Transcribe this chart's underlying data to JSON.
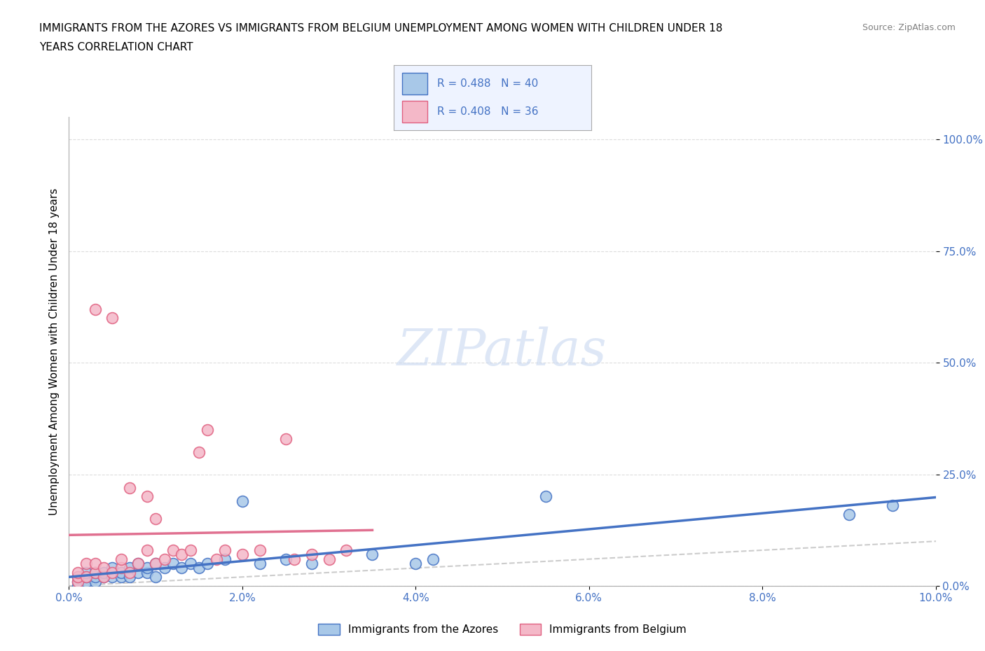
{
  "title_line1": "IMMIGRANTS FROM THE AZORES VS IMMIGRANTS FROM BELGIUM UNEMPLOYMENT AMONG WOMEN WITH CHILDREN UNDER 18",
  "title_line2": "YEARS CORRELATION CHART",
  "source": "Source: ZipAtlas.com",
  "ylabel": "Unemployment Among Women with Children Under 18 years",
  "xlim": [
    0.0,
    0.1
  ],
  "ylim": [
    0.0,
    1.05
  ],
  "x_ticks": [
    0.0,
    0.02,
    0.04,
    0.06,
    0.08,
    0.1
  ],
  "x_tick_labels": [
    "0.0%",
    "2.0%",
    "4.0%",
    "6.0%",
    "8.0%",
    "10.0%"
  ],
  "y_ticks": [
    0.0,
    0.25,
    0.5,
    0.75,
    1.0
  ],
  "y_tick_labels": [
    "0.0%",
    "25.0%",
    "50.0%",
    "75.0%",
    "100.0%"
  ],
  "azores_color": "#a8c8e8",
  "azores_edge_color": "#4472c4",
  "belgium_color": "#f4b8c8",
  "belgium_edge_color": "#e06080",
  "trend_line_color_azores": "#4472c4",
  "trend_line_color_belgium": "#e07090",
  "diagonal_color": "#cccccc",
  "legend_box_color": "#eef3ff",
  "watermark_color": "#c8d8f0",
  "azores_x": [
    0.001,
    0.001,
    0.001,
    0.002,
    0.002,
    0.002,
    0.003,
    0.003,
    0.003,
    0.004,
    0.004,
    0.005,
    0.005,
    0.006,
    0.006,
    0.007,
    0.007,
    0.008,
    0.008,
    0.009,
    0.009,
    0.01,
    0.01,
    0.011,
    0.012,
    0.013,
    0.014,
    0.015,
    0.016,
    0.018,
    0.02,
    0.022,
    0.025,
    0.028,
    0.035,
    0.04,
    0.042,
    0.055,
    0.09,
    0.095
  ],
  "azores_y": [
    0.0,
    0.01,
    0.02,
    0.01,
    0.02,
    0.03,
    0.01,
    0.02,
    0.03,
    0.02,
    0.03,
    0.02,
    0.04,
    0.02,
    0.03,
    0.02,
    0.04,
    0.03,
    0.05,
    0.03,
    0.04,
    0.02,
    0.05,
    0.04,
    0.05,
    0.04,
    0.05,
    0.04,
    0.05,
    0.06,
    0.19,
    0.05,
    0.06,
    0.05,
    0.07,
    0.05,
    0.06,
    0.2,
    0.16,
    0.18
  ],
  "belgium_x": [
    0.001,
    0.001,
    0.001,
    0.002,
    0.002,
    0.003,
    0.003,
    0.003,
    0.004,
    0.004,
    0.005,
    0.005,
    0.006,
    0.006,
    0.007,
    0.007,
    0.008,
    0.009,
    0.009,
    0.01,
    0.01,
    0.011,
    0.012,
    0.013,
    0.014,
    0.015,
    0.016,
    0.017,
    0.018,
    0.02,
    0.022,
    0.025,
    0.026,
    0.028,
    0.03,
    0.032
  ],
  "belgium_y": [
    0.01,
    0.02,
    0.03,
    0.02,
    0.05,
    0.03,
    0.05,
    0.62,
    0.02,
    0.04,
    0.03,
    0.6,
    0.04,
    0.06,
    0.03,
    0.22,
    0.05,
    0.08,
    0.2,
    0.05,
    0.15,
    0.06,
    0.08,
    0.07,
    0.08,
    0.3,
    0.35,
    0.06,
    0.08,
    0.07,
    0.08,
    0.33,
    0.06,
    0.07,
    0.06,
    0.08
  ]
}
